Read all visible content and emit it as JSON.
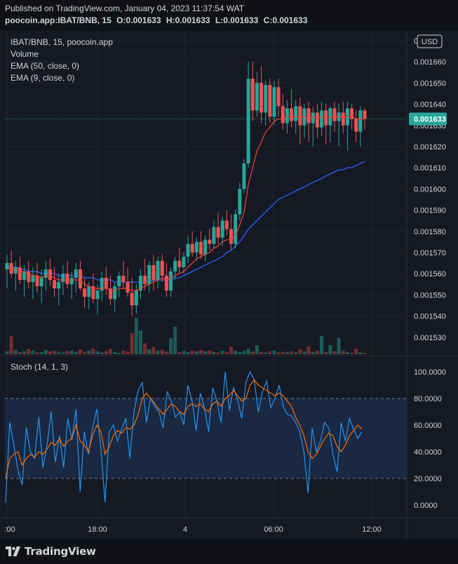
{
  "header": {
    "published": "Published on TradingView.com, January 04, 2023 11:37:54 WAT",
    "symbol": "poocoin.app:IBAT/BNB, 15",
    "open": "O:0.001633",
    "high": "H:0.001633",
    "low": "L:0.001633",
    "close": "C:0.001633"
  },
  "legend": {
    "title": "IBAT/BNB, 15, poocoin.app",
    "volume": "Volume",
    "ema50": "EMA (50, close, 0)",
    "ema9": "EMA (9, close, 0)"
  },
  "currency_button": "USD",
  "current_price_label": "0.001633",
  "stoch_label": "Stoch (14, 1, 3)",
  "brand": "TradingView",
  "colors": {
    "up": "#26a69a",
    "down": "#ef5350",
    "ema50": "#2962ff",
    "ema9": "#f44336",
    "stoch_k": "#2196f3",
    "stoch_d": "#ff6d00",
    "background": "#151924"
  },
  "chart_data": [
    {
      "type": "candlestick",
      "title": "IBAT/BNB, 15, poocoin.app",
      "ylim": [
        0.001524,
        0.001668
      ],
      "y_ticks": [
        "0.00166",
        "0.001660",
        "0.001650",
        "0.001640",
        "0.001630",
        "0.001620",
        "0.001610",
        "0.001600",
        "0.001590",
        "0.001580",
        "0.001570",
        "0.001560",
        "0.001550",
        "0.001540",
        "0.001530"
      ],
      "x_ticks": [
        ":00",
        "18:00",
        "4",
        "06:00",
        "12:00"
      ],
      "last_price": 0.001633,
      "candles": [
        [
          0.001562,
          0.001569,
          0.001553,
          0.001565
        ],
        [
          0.001565,
          0.001571,
          0.001558,
          0.00156
        ],
        [
          0.00156,
          0.001566,
          0.001552,
          0.001563
        ],
        [
          0.001563,
          0.001568,
          0.001555,
          0.001557
        ],
        [
          0.001557,
          0.001564,
          0.001549,
          0.001561
        ],
        [
          0.001561,
          0.001566,
          0.001553,
          0.001556
        ],
        [
          0.001556,
          0.001563,
          0.001548,
          0.001559
        ],
        [
          0.001559,
          0.001565,
          0.001551,
          0.001554
        ],
        [
          0.001554,
          0.001562,
          0.001546,
          0.001558
        ],
        [
          0.001558,
          0.001566,
          0.001552,
          0.001562
        ],
        [
          0.001562,
          0.001567,
          0.001554,
          0.001557
        ],
        [
          0.001557,
          0.001563,
          0.001549,
          0.001553
        ],
        [
          0.001553,
          0.00156,
          0.001545,
          0.001556
        ],
        [
          0.001556,
          0.001564,
          0.00155,
          0.00156
        ],
        [
          0.00156,
          0.001566,
          0.001553,
          0.001555
        ],
        [
          0.001555,
          0.001561,
          0.001548,
          0.001558
        ],
        [
          0.001558,
          0.001565,
          0.001551,
          0.001562
        ],
        [
          0.001562,
          0.001566,
          0.001552,
          0.001553
        ],
        [
          0.001553,
          0.001558,
          0.001544,
          0.001549
        ],
        [
          0.001549,
          0.001556,
          0.001543,
          0.001554
        ],
        [
          0.001554,
          0.00156,
          0.001546,
          0.001548
        ],
        [
          0.001548,
          0.001555,
          0.001541,
          0.001552
        ],
        [
          0.001552,
          0.001561,
          0.001547,
          0.001558
        ],
        [
          0.001558,
          0.001563,
          0.00155,
          0.001553
        ],
        [
          0.001553,
          0.001559,
          0.001545,
          0.001548
        ],
        [
          0.001548,
          0.001556,
          0.001542,
          0.001554
        ],
        [
          0.001554,
          0.001561,
          0.001549,
          0.001559
        ],
        [
          0.001559,
          0.001566,
          0.001553,
          0.001556
        ],
        [
          0.001556,
          0.001563,
          0.001549,
          0.001551
        ],
        [
          0.001551,
          0.001558,
          0.00154,
          0.001545
        ],
        [
          0.001545,
          0.001555,
          0.001541,
          0.001552
        ],
        [
          0.001552,
          0.001562,
          0.001548,
          0.001559
        ],
        [
          0.001559,
          0.001567,
          0.001552,
          0.001555
        ],
        [
          0.001555,
          0.001566,
          0.001551,
          0.001564
        ],
        [
          0.001564,
          0.001569,
          0.001552,
          0.001557
        ],
        [
          0.001557,
          0.001568,
          0.001553,
          0.001566
        ],
        [
          0.001566,
          0.001569,
          0.001556,
          0.001559
        ],
        [
          0.001559,
          0.001565,
          0.001549,
          0.001552
        ],
        [
          0.001552,
          0.001563,
          0.001549,
          0.001561
        ],
        [
          0.001561,
          0.001568,
          0.001557,
          0.001566
        ],
        [
          0.001566,
          0.001572,
          0.00156,
          0.001563
        ],
        [
          0.001563,
          0.00157,
          0.00156,
          0.001568
        ],
        [
          0.001568,
          0.001578,
          0.001565,
          0.001574
        ],
        [
          0.001574,
          0.00158,
          0.001568,
          0.00157
        ],
        [
          0.00157,
          0.001577,
          0.001566,
          0.001575
        ],
        [
          0.001575,
          0.00158,
          0.001567,
          0.001569
        ],
        [
          0.001569,
          0.001578,
          0.001566,
          0.001576
        ],
        [
          0.001576,
          0.001581,
          0.001571,
          0.001574
        ],
        [
          0.001574,
          0.001585,
          0.001572,
          0.001582
        ],
        [
          0.001582,
          0.001589,
          0.001574,
          0.001577
        ],
        [
          0.001577,
          0.001587,
          0.001573,
          0.001585
        ],
        [
          0.001585,
          0.00159,
          0.001578,
          0.001581
        ],
        [
          0.001581,
          0.001588,
          0.001571,
          0.001574
        ],
        [
          0.001574,
          0.00159,
          0.001572,
          0.001588
        ],
        [
          0.001588,
          0.001603,
          0.001585,
          0.0016
        ],
        [
          0.0016,
          0.001614,
          0.001598,
          0.001612
        ],
        [
          0.001612,
          0.00166,
          0.00161,
          0.001652
        ],
        [
          0.001652,
          0.00166,
          0.001632,
          0.001637
        ],
        [
          0.001637,
          0.001655,
          0.001634,
          0.00165
        ],
        [
          0.00165,
          0.001658,
          0.001631,
          0.001636
        ],
        [
          0.001636,
          0.001651,
          0.00163,
          0.001649
        ],
        [
          0.001649,
          0.001652,
          0.001631,
          0.001634
        ],
        [
          0.001634,
          0.001651,
          0.00163,
          0.001648
        ],
        [
          0.001648,
          0.001652,
          0.001634,
          0.001639
        ],
        [
          0.001639,
          0.001645,
          0.001628,
          0.001631
        ],
        [
          0.001631,
          0.001642,
          0.001626,
          0.001638
        ],
        [
          0.001638,
          0.001647,
          0.001629,
          0.001632
        ],
        [
          0.001632,
          0.001642,
          0.001626,
          0.001639
        ],
        [
          0.001639,
          0.001643,
          0.001621,
          0.00163
        ],
        [
          0.00163,
          0.00164,
          0.001624,
          0.001638
        ],
        [
          0.001638,
          0.001641,
          0.001622,
          0.001631
        ],
        [
          0.001631,
          0.001639,
          0.00162,
          0.001636
        ],
        [
          0.001636,
          0.00164,
          0.001624,
          0.001629
        ],
        [
          0.001629,
          0.001641,
          0.001625,
          0.001637
        ],
        [
          0.001637,
          0.00164,
          0.001621,
          0.00163
        ],
        [
          0.00163,
          0.001639,
          0.001622,
          0.001638
        ],
        [
          0.001638,
          0.001641,
          0.001627,
          0.001632
        ],
        [
          0.001632,
          0.00164,
          0.00162,
          0.001636
        ],
        [
          0.001636,
          0.001641,
          0.001626,
          0.00163
        ],
        [
          0.00163,
          0.001641,
          0.001618,
          0.001638
        ],
        [
          0.001638,
          0.00164,
          0.001628,
          0.001633
        ],
        [
          0.001633,
          0.001637,
          0.001622,
          0.001627
        ],
        [
          0.001627,
          0.001639,
          0.00162,
          0.001637
        ],
        [
          0.001637,
          0.001638,
          0.001628,
          0.001633
        ]
      ],
      "ema9": [
        0.001563,
        0.001562,
        0.001562,
        0.001561,
        0.001561,
        0.00156,
        0.001559,
        0.001559,
        0.001558,
        0.001559,
        0.001559,
        0.001558,
        0.001557,
        0.001557,
        0.001557,
        0.001557,
        0.001557,
        0.001557,
        0.001555,
        0.001554,
        0.001553,
        0.001553,
        0.001553,
        0.001553,
        0.001552,
        0.001552,
        0.001553,
        0.001553,
        0.001553,
        0.001552,
        0.001552,
        0.001553,
        0.001554,
        0.001555,
        0.001556,
        0.001557,
        0.001558,
        0.001557,
        0.001558,
        0.001559,
        0.00156,
        0.001561,
        0.001563,
        0.001565,
        0.001567,
        0.001568,
        0.001569,
        0.00157,
        0.001572,
        0.001573,
        0.001575,
        0.001576,
        0.001576,
        0.001578,
        0.001583,
        0.001589,
        0.001602,
        0.00161,
        0.001618,
        0.001622,
        0.001627,
        0.001629,
        0.001632,
        0.001633,
        0.001633,
        0.001634,
        0.001634,
        0.001634,
        0.001634,
        0.001634,
        0.001633,
        0.001634,
        0.001633,
        0.001634,
        0.001633,
        0.001634,
        0.001634,
        0.001634,
        0.001634,
        0.001634,
        0.001634,
        0.001633,
        0.001633,
        0.001633
      ],
      "ema50": [
        0.001564,
        0.001563,
        0.001563,
        0.001562,
        0.001562,
        0.001561,
        0.001561,
        0.001561,
        0.00156,
        0.00156,
        0.00156,
        0.00156,
        0.001559,
        0.001559,
        0.001559,
        0.001559,
        0.001559,
        0.001559,
        0.001558,
        0.001558,
        0.001558,
        0.001557,
        0.001557,
        0.001557,
        0.001557,
        0.001556,
        0.001556,
        0.001556,
        0.001556,
        0.001556,
        0.001556,
        0.001556,
        0.001556,
        0.001556,
        0.001557,
        0.001557,
        0.001557,
        0.001557,
        0.001557,
        0.001558,
        0.001558,
        0.001559,
        0.00156,
        0.001561,
        0.001562,
        0.001563,
        0.001564,
        0.001565,
        0.001566,
        0.001567,
        0.001568,
        0.00157,
        0.001571,
        0.001573,
        0.001575,
        0.001578,
        0.001581,
        0.001583,
        0.001585,
        0.001587,
        0.001589,
        0.001591,
        0.001593,
        0.001595,
        0.001596,
        0.001597,
        0.001598,
        0.001599,
        0.0016,
        0.001601,
        0.001602,
        0.001603,
        0.001604,
        0.001605,
        0.001606,
        0.001607,
        0.001608,
        0.001609,
        0.001609,
        0.00161,
        0.00161,
        0.001611,
        0.001612,
        0.001613
      ],
      "volume_relative": [
        0.08,
        0.5,
        0.12,
        0.06,
        0.08,
        0.15,
        0.1,
        0.05,
        0.06,
        0.12,
        0.08,
        0.1,
        0.07,
        0.05,
        0.09,
        0.1,
        0.06,
        0.13,
        0.07,
        0.1,
        0.16,
        0.08,
        0.05,
        0.09,
        0.15,
        0.06,
        0.04,
        0.1,
        0.07,
        0.58,
        1.0,
        0.65,
        0.3,
        0.14,
        0.2,
        0.1,
        0.12,
        0.08,
        0.44,
        0.75,
        0.06,
        0.09,
        0.06,
        0.1,
        0.08,
        0.12,
        0.08,
        0.1,
        0.06,
        0.05,
        0.09,
        0.06,
        0.21,
        0.1,
        0.06,
        0.09,
        0.15,
        0.08,
        0.25,
        0.06,
        0.05,
        0.08,
        0.1,
        0.05,
        0.06,
        0.07,
        0.08,
        0.05,
        0.14,
        0.08,
        0.22,
        0.06,
        0.1,
        0.5,
        0.06,
        0.25,
        0.08,
        0.45,
        0.1,
        0.06,
        0.04,
        0.15,
        0.06,
        0.04
      ]
    },
    {
      "type": "line",
      "title": "Stoch (14, 1, 3)",
      "ylim": [
        -5,
        105
      ],
      "y_ticks": [
        "100.0000",
        "80.0000",
        "60.0000",
        "40.0000",
        "20.0000",
        "0.0000"
      ],
      "bands": [
        20,
        80
      ],
      "series": [
        {
          "name": "%K",
          "values": [
            2,
            62,
            45,
            26,
            15,
            58,
            40,
            35,
            66,
            28,
            45,
            70,
            32,
            52,
            28,
            65,
            49,
            72,
            10,
            55,
            38,
            58,
            72,
            42,
            2,
            55,
            60,
            48,
            57,
            65,
            35,
            70,
            86,
            92,
            62,
            80,
            74,
            70,
            58,
            85,
            78,
            66,
            70,
            60,
            90,
            78,
            56,
            84,
            73,
            55,
            88,
            78,
            62,
            100,
            71,
            88,
            79,
            65,
            92,
            100,
            94,
            70,
            85,
            93,
            73,
            80,
            90,
            74,
            68,
            67,
            62,
            55,
            40,
            9,
            58,
            40,
            48,
            62,
            58,
            38,
            25,
            62,
            48,
            65,
            57,
            50,
            55
          ]
        },
        {
          "name": "%D",
          "values": [
            20,
            35,
            38,
            40,
            30,
            35,
            38,
            36,
            40,
            38,
            42,
            47,
            45,
            50,
            44,
            48,
            50,
            60,
            48,
            45,
            40,
            52,
            60,
            55,
            38,
            44,
            52,
            56,
            54,
            58,
            57,
            60,
            68,
            80,
            84,
            80,
            76,
            72,
            68,
            72,
            76,
            74,
            70,
            68,
            74,
            76,
            74,
            76,
            72,
            70,
            76,
            78,
            74,
            80,
            82,
            86,
            82,
            78,
            80,
            90,
            94,
            90,
            88,
            86,
            84,
            82,
            84,
            82,
            78,
            74,
            66,
            60,
            52,
            40,
            35,
            38,
            44,
            50,
            54,
            52,
            44,
            40,
            45,
            52,
            56,
            60,
            57
          ]
        }
      ]
    }
  ]
}
